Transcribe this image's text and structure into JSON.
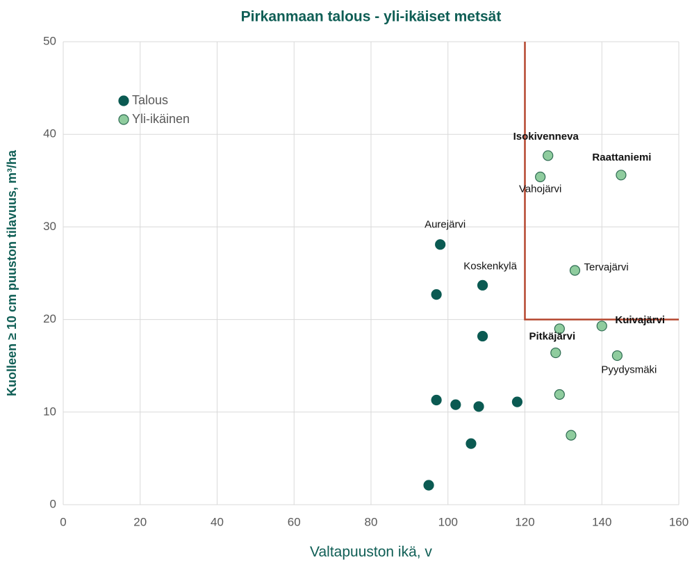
{
  "chart_data": {
    "type": "scatter",
    "title": "Pirkanmaan talous - yli-ikäiset metsät",
    "x_label": "Valtapuuston ikä, v",
    "y_label": "Kuolleen ≥ 10 cm puuston tilavuus, m³/ha",
    "xlim": [
      0,
      160
    ],
    "xticks": [
      0,
      20,
      40,
      60,
      80,
      100,
      120,
      140,
      160
    ],
    "ylim": [
      0,
      50
    ],
    "yticks": [
      0,
      10,
      20,
      30,
      40,
      50
    ],
    "grid": true,
    "legend": "upper left",
    "threshold": {
      "x": 120,
      "y": 20,
      "color": "#b5472f"
    },
    "series": [
      {
        "name": "Talous",
        "color": "#0b5a52",
        "x": [
          98,
          97,
          109,
          109,
          97,
          102,
          108,
          118,
          106,
          95
        ],
        "values": [
          28.1,
          22.7,
          23.7,
          18.2,
          11.3,
          10.8,
          10.6,
          11.1,
          6.6,
          2.1
        ],
        "labels": [
          "Aurejärvi",
          null,
          "Koskenkylä",
          null,
          null,
          null,
          null,
          null,
          null,
          null
        ],
        "labels_bold": [
          false,
          false,
          false,
          false,
          false,
          false,
          false,
          false,
          false,
          false
        ]
      },
      {
        "name": "Yli-ikäinen",
        "color": "#8fcc9e",
        "x": [
          126,
          124,
          145,
          133,
          129,
          140,
          128,
          144,
          129,
          132
        ],
        "values": [
          37.7,
          35.4,
          35.6,
          25.3,
          19.0,
          19.3,
          16.4,
          16.1,
          11.9,
          7.5
        ],
        "labels": [
          "Isokivenneva",
          "Vahojärvi",
          "Raattaniemi",
          "Tervajärvi",
          null,
          "Kuivajärvi",
          "Pitkäjärvi",
          "Pyydysmäki",
          null,
          null
        ],
        "labels_bold": [
          true,
          false,
          true,
          false,
          false,
          true,
          true,
          false,
          false,
          false
        ]
      }
    ]
  }
}
